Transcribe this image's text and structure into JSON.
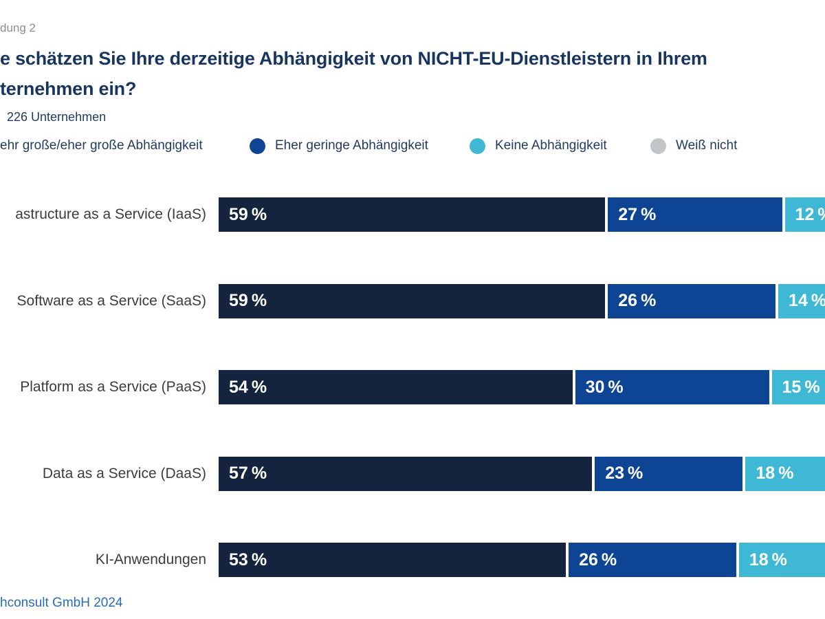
{
  "header": {
    "figure_label": "dung 2",
    "title_line1": "e schätzen Sie Ihre derzeitige Abhängigkeit von NICHT-EU-Dienstleistern in Ihrem",
    "title_line2": "ternehmen ein?",
    "sample_note": "226 Unternehmen"
  },
  "legend": {
    "items": [
      {
        "label": "ehr große/eher große Abhängigkeit",
        "color": "#14233E",
        "dot_visible": false
      },
      {
        "label": "Eher geringe Abhängigkeit",
        "color": "#0D4494",
        "dot_visible": true
      },
      {
        "label": "Keine Abhängigkeit",
        "color": "#3EB8D5",
        "dot_visible": true
      },
      {
        "label": "Weiß nicht",
        "color": "#C2C6CA",
        "dot_visible": true
      }
    ]
  },
  "chart_data": {
    "type": "bar",
    "orientation": "horizontal",
    "stacked": true,
    "unit": "%",
    "value_suffix": " %",
    "categories": [
      "astructure as a Service (IaaS)",
      "Software as a Service (SaaS)",
      "Platform as a Service (PaaS)",
      "Data as a Service (DaaS)",
      "KI-Anwendungen"
    ],
    "series": [
      {
        "name": "ehr große/eher große Abhängigkeit",
        "color": "#14233E",
        "values": [
          59,
          59,
          54,
          57,
          53
        ]
      },
      {
        "name": "Eher geringe Abhängigkeit",
        "color": "#0D4494",
        "values": [
          27,
          26,
          30,
          23,
          26
        ]
      },
      {
        "name": "Keine Abhängigkeit",
        "color": "#3EB8D5",
        "values": [
          12,
          14,
          15,
          18,
          18
        ]
      }
    ],
    "legend_position": "top",
    "grid": false,
    "notes": "right edge of chart cropped at image boundary"
  },
  "footer": {
    "credit": "hconsult GmbH 2024"
  },
  "colors": {
    "series_dark_navy": "#14233E",
    "series_blue": "#0D4494",
    "series_cyan": "#3EB8D5",
    "series_gray": "#C2C6CA",
    "title": "#17355E",
    "legend_text": "#223A60",
    "row_label": "#3C3C3C",
    "footer_text": "#2A6CB4",
    "figure_label": "#8E8E8E",
    "background": "#FFFFFF"
  }
}
